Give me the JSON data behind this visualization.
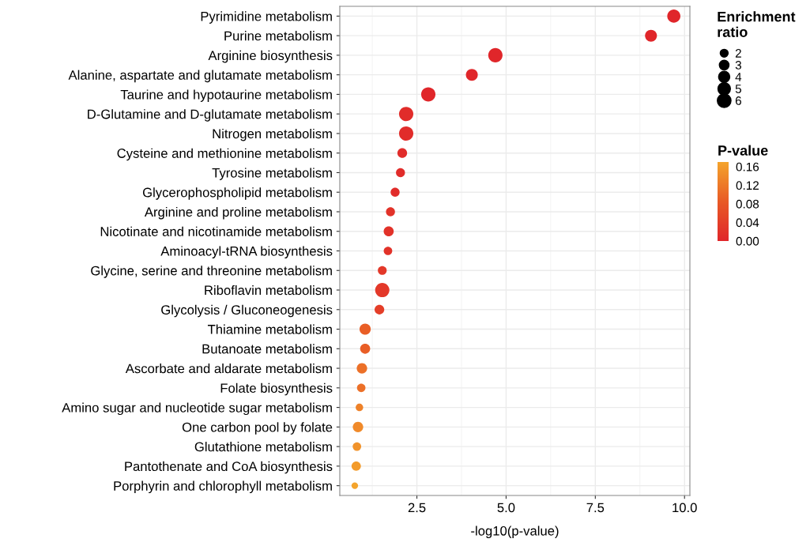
{
  "chart_data": {
    "type": "bubble",
    "categories": [
      "Pyrimidine metabolism",
      "Purine metabolism",
      "Arginine biosynthesis",
      "Alanine, aspartate and glutamate metabolism",
      "Taurine and hypotaurine metabolism",
      "D-Glutamine and D-glutamate metabolism",
      "Nitrogen metabolism",
      "Cysteine and methionine metabolism",
      "Tyrosine metabolism",
      "Glycerophospholipid metabolism",
      "Arginine and proline metabolism",
      "Nicotinate and nicotinamide metabolism",
      "Aminoacyl-tRNA biosynthesis",
      "Glycine, serine and threonine metabolism",
      "Riboflavin metabolism",
      "Glycolysis / Gluconeogenesis",
      "Thiamine metabolism",
      "Butanoate metabolism",
      "Ascorbate and aldarate metabolism",
      "Folate biosynthesis",
      "Amino sugar and nucleotide sugar metabolism",
      "One carbon pool by folate",
      "Glutathione metabolism",
      "Pantothenate and CoA biosynthesis",
      "Porphyrin and chlorophyll metabolism"
    ],
    "orientation": "horizontal",
    "values": [
      9.7,
      9.06,
      4.7,
      4.04,
      2.82,
      2.2,
      2.2,
      2.09,
      2.04,
      1.89,
      1.76,
      1.71,
      1.69,
      1.53,
      1.53,
      1.45,
      1.05,
      1.05,
      0.96,
      0.94,
      0.89,
      0.85,
      0.82,
      0.8,
      0.76
    ],
    "sizes": [
      5.5,
      4.5,
      6.5,
      4.5,
      6.5,
      6.5,
      6.5,
      3.0,
      2.6,
      2.6,
      2.6,
      3.2,
      2.3,
      2.5,
      6.5,
      3.0,
      4.0,
      3.2,
      3.5,
      2.3,
      1.8,
      3.5,
      2.3,
      2.8,
      1.4
    ],
    "cvalues": [
      0.0,
      0.0,
      0.0,
      0.0,
      0.0,
      0.01,
      0.01,
      0.01,
      0.01,
      0.01,
      0.02,
      0.02,
      0.02,
      0.03,
      0.03,
      0.04,
      0.09,
      0.09,
      0.11,
      0.11,
      0.13,
      0.14,
      0.15,
      0.16,
      0.17
    ],
    "size_legend": [
      2,
      3,
      4,
      5,
      6
    ],
    "legend_title": "Enrichment ratio",
    "clabel": "P-value",
    "clim": [
      0,
      0.17
    ],
    "cticks": [
      {
        "value": 0,
        "label": "0.00"
      },
      {
        "value": 0.04,
        "label": "0.04"
      },
      {
        "value": 0.08,
        "label": "0.08"
      },
      {
        "value": 0.12,
        "label": "0.12"
      },
      {
        "value": 0.16,
        "label": "0.16"
      }
    ],
    "xlabel": "-log10(p-value)",
    "xlim": [
      0.34,
      10.15
    ],
    "xticks": [
      {
        "value": 2.5,
        "label": "2.5"
      },
      {
        "value": 5,
        "label": "5.0"
      },
      {
        "value": 7.5,
        "label": "7.5"
      },
      {
        "value": 10,
        "label": "10.0"
      }
    ],
    "grid": true
  }
}
